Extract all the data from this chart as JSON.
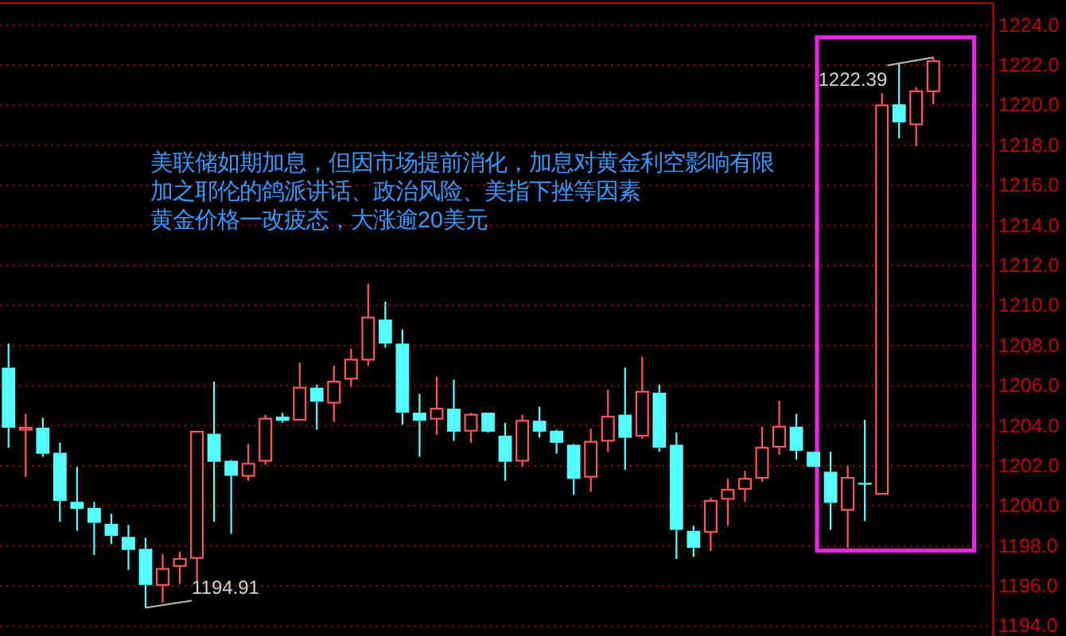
{
  "chart_data": {
    "type": "candlestick",
    "categories": [
      null,
      null,
      null,
      null,
      null,
      null,
      null,
      null,
      null,
      null,
      null,
      null,
      null,
      null,
      null,
      null,
      null,
      null,
      null,
      null,
      null,
      null,
      null,
      null,
      null,
      null,
      null,
      null,
      null,
      null,
      null,
      null,
      null,
      null,
      null,
      null,
      null,
      null,
      null,
      null,
      null,
      null,
      null,
      null,
      null,
      null,
      null,
      null,
      null,
      null,
      null,
      null,
      null,
      null,
      null,
      null,
      null,
      null
    ],
    "ohlc": [
      [
        1206.9,
        1208.1,
        1202.9,
        1203.9
      ],
      [
        1203.8,
        1204.6,
        1201.45,
        1203.9
      ],
      [
        1203.9,
        1204.4,
        1202.45,
        1202.6
      ],
      [
        1202.65,
        1203.15,
        1199.2,
        1200.25
      ],
      [
        1200.2,
        1201.95,
        1198.75,
        1199.85
      ],
      [
        1199.9,
        1200.2,
        1197.55,
        1199.15
      ],
      [
        1199.1,
        1199.6,
        1198.1,
        1198.5
      ],
      [
        1198.45,
        1199.05,
        1196.8,
        1197.8
      ],
      [
        1197.85,
        1198.4,
        1194.91,
        1196.05
      ],
      [
        1196.05,
        1197.6,
        1195.15,
        1196.85
      ],
      [
        1197.0,
        1197.7,
        1196.1,
        1197.35
      ],
      [
        1197.4,
        1203.7,
        1196.25,
        1203.7
      ],
      [
        1203.6,
        1206.2,
        1199.2,
        1202.2
      ],
      [
        1202.25,
        1202.3,
        1198.6,
        1201.5
      ],
      [
        1201.5,
        1203.1,
        1201.25,
        1202.1
      ],
      [
        1202.25,
        1204.55,
        1202.05,
        1204.35
      ],
      [
        1204.45,
        1204.65,
        1204.15,
        1204.25
      ],
      [
        1204.3,
        1207.15,
        1204.3,
        1205.9
      ],
      [
        1205.9,
        1206.05,
        1203.8,
        1205.2
      ],
      [
        1205.15,
        1207.0,
        1204.2,
        1206.2
      ],
      [
        1206.35,
        1207.85,
        1205.95,
        1207.3
      ],
      [
        1207.3,
        1211.1,
        1207.0,
        1209.4
      ],
      [
        1209.3,
        1210.2,
        1207.9,
        1208.1
      ],
      [
        1208.1,
        1208.8,
        1204.05,
        1204.65
      ],
      [
        1204.65,
        1205.6,
        1202.45,
        1204.25
      ],
      [
        1204.35,
        1206.45,
        1203.55,
        1204.85
      ],
      [
        1204.85,
        1206.3,
        1203.25,
        1203.7
      ],
      [
        1203.75,
        1204.65,
        1203.15,
        1204.55
      ],
      [
        1204.65,
        1204.65,
        1203.65,
        1203.7
      ],
      [
        1203.5,
        1204.15,
        1201.25,
        1202.2
      ],
      [
        1202.25,
        1204.55,
        1201.95,
        1204.25
      ],
      [
        1204.25,
        1204.95,
        1203.4,
        1203.7
      ],
      [
        1203.75,
        1203.8,
        1202.6,
        1203.15
      ],
      [
        1203.05,
        1203.1,
        1200.55,
        1201.35
      ],
      [
        1201.45,
        1203.85,
        1200.7,
        1203.2
      ],
      [
        1203.25,
        1205.8,
        1202.7,
        1204.45
      ],
      [
        1204.55,
        1206.9,
        1201.8,
        1203.4
      ],
      [
        1203.5,
        1207.45,
        1203.35,
        1205.7
      ],
      [
        1205.65,
        1206.05,
        1202.7,
        1202.9
      ],
      [
        1203.05,
        1203.65,
        1197.35,
        1198.8
      ],
      [
        1198.75,
        1199.0,
        1197.45,
        1197.9
      ],
      [
        1198.7,
        1200.4,
        1197.75,
        1200.25
      ],
      [
        1200.35,
        1201.35,
        1199.0,
        1200.8
      ],
      [
        1200.85,
        1201.75,
        1200.2,
        1201.35
      ],
      [
        1201.4,
        1203.95,
        1201.2,
        1202.9
      ],
      [
        1202.95,
        1205.25,
        1202.55,
        1203.95
      ],
      [
        1203.95,
        1204.6,
        1202.3,
        1202.75
      ],
      [
        1202.7,
        1202.7,
        1201.95,
        1201.95
      ],
      [
        1201.7,
        1202.7,
        1198.8,
        1200.15
      ],
      [
        1199.8,
        1202.0,
        1197.9,
        1201.4
      ],
      [
        1201.15,
        1204.3,
        1199.25,
        1201.1
      ],
      [
        1200.6,
        1220.6,
        1200.6,
        1220.0
      ],
      [
        1220.05,
        1222.05,
        1218.35,
        1219.15
      ],
      [
        1219.05,
        1220.9,
        1217.95,
        1220.7
      ],
      [
        1220.7,
        1222.39,
        1220.05,
        1222.2
      ],
      null,
      null,
      null
    ],
    "colors": [
      "#55ffff",
      "#ff5555",
      "#55ffff",
      "#55ffff",
      "#55ffff",
      "#55ffff",
      "#55ffff",
      "#55ffff",
      "#55ffff",
      "#ff5555",
      "#ff5555",
      "#ff5555",
      "#55ffff",
      "#55ffff",
      "#ff5555",
      "#ff5555",
      "#55ffff",
      "#ff5555",
      "#55ffff",
      "#ff5555",
      "#ff5555",
      "#ff5555",
      "#55ffff",
      "#55ffff",
      "#55ffff",
      "#ff5555",
      "#55ffff",
      "#ff5555",
      "#55ffff",
      "#55ffff",
      "#ff5555",
      "#55ffff",
      "#55ffff",
      "#55ffff",
      "#ff5555",
      "#ff5555",
      "#55ffff",
      "#ff5555",
      "#55ffff",
      "#55ffff",
      "#55ffff",
      "#ff5555",
      "#ff5555",
      "#ff5555",
      "#ff5555",
      "#ff5555",
      "#55ffff",
      "#55ffff",
      "#55ffff",
      "#ff5555",
      "#55ffff",
      "#ff5555",
      "#55ffff",
      "#ff5555",
      "#ff5555",
      null,
      null,
      null
    ],
    "ylim": [
      1193.5,
      1225.1
    ],
    "yticks": [
      {
        "value": 1194,
        "label": "1194.0"
      },
      {
        "value": 1196,
        "label": "1196.0"
      },
      {
        "value": 1198,
        "label": "1198.0"
      },
      {
        "value": 1200,
        "label": "1200.0"
      },
      {
        "value": 1202,
        "label": "1202.0"
      },
      {
        "value": 1204,
        "label": "1204.0"
      },
      {
        "value": 1206,
        "label": "1206.0"
      },
      {
        "value": 1208,
        "label": "1208.0"
      },
      {
        "value": 1210,
        "label": "1210.0"
      },
      {
        "value": 1212,
        "label": "1212.0"
      },
      {
        "value": 1214,
        "label": "1214.0"
      },
      {
        "value": 1216,
        "label": "1216.0"
      },
      {
        "value": 1218,
        "label": "1218.0"
      },
      {
        "value": 1220,
        "label": "1220.0"
      },
      {
        "value": 1222,
        "label": "1222.0"
      },
      {
        "value": 1224,
        "label": "1224.0"
      }
    ],
    "grid": "y",
    "tick_labels": "y",
    "annotations": [
      "美联储如期加息，但因市场提前消化，加息对黄金利空影响有限",
      "加之耶伦的鸽派讲话、政治风险、美指下挫等因素",
      "黄金价格一改疲态，大涨逾20美元",
      "1194.91",
      "1222.39"
    ]
  }
}
